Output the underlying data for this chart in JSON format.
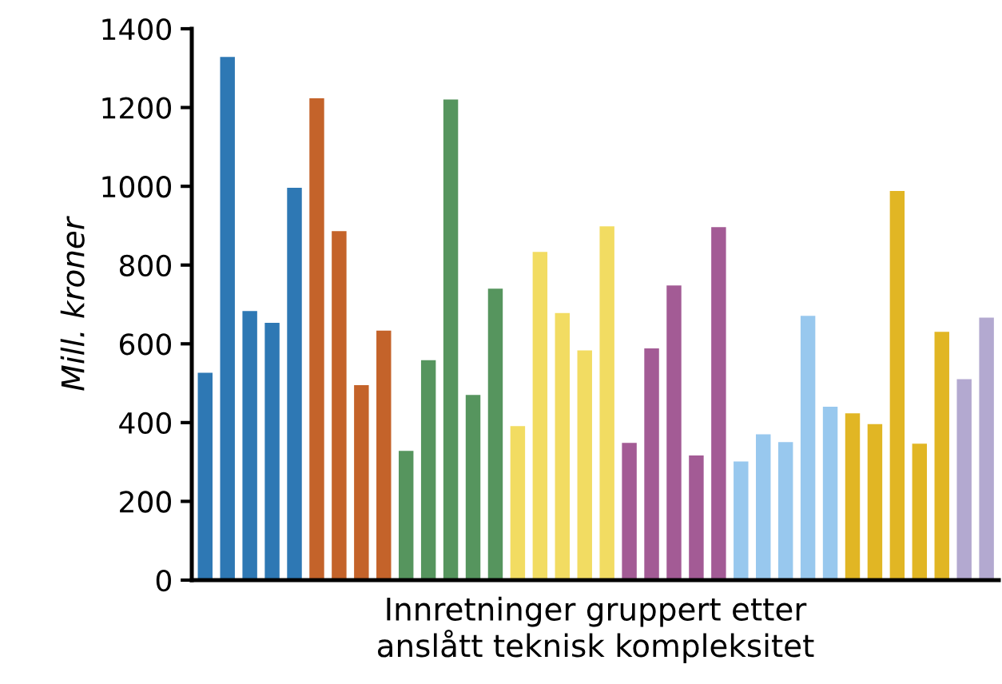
{
  "chart_data": {
    "type": "bar",
    "xlabel": "Innretninger gruppert etter\nanslått teknisk kompleksitet",
    "ylabel": "Mill. kroner",
    "categories": [
      null,
      null,
      null,
      null,
      null,
      null,
      null,
      null,
      null,
      null,
      null,
      null,
      null,
      null,
      null,
      null,
      null,
      null,
      null,
      null,
      null,
      null,
      null,
      null,
      null,
      null,
      null,
      null,
      null,
      null,
      null,
      null,
      null,
      null,
      null,
      null
    ],
    "values": [
      528,
      1330,
      685,
      655,
      998,
      1225,
      888,
      497,
      635,
      330,
      560,
      1222,
      472,
      742,
      393,
      835,
      680,
      585,
      900,
      350,
      590,
      750,
      318,
      898,
      303,
      372,
      352,
      673,
      442,
      425,
      398,
      990,
      348,
      632,
      512,
      668
    ],
    "colors": [
      "#2e78b4",
      "#2e78b4",
      "#2e78b4",
      "#2e78b4",
      "#2e78b4",
      "#c4632a",
      "#c4632a",
      "#c4632a",
      "#c4632a",
      "#56955e",
      "#56955e",
      "#56955e",
      "#56955e",
      "#56955e",
      "#f2dc62",
      "#f2dc62",
      "#f2dc62",
      "#f2dc62",
      "#f2dc62",
      "#a35b95",
      "#a35b95",
      "#a35b95",
      "#a35b95",
      "#a35b95",
      "#98c8ee",
      "#98c8ee",
      "#98c8ee",
      "#98c8ee",
      "#98c8ee",
      "#e1b624",
      "#e1b624",
      "#e1b624",
      "#e1b624",
      "#e1b624",
      "#b3a9d0",
      "#b3a9d0"
    ],
    "ylim": [
      0,
      1400
    ],
    "yticks": [
      0,
      200,
      400,
      600,
      800,
      1000,
      1200,
      1400
    ],
    "grid": false,
    "legend": false
  }
}
